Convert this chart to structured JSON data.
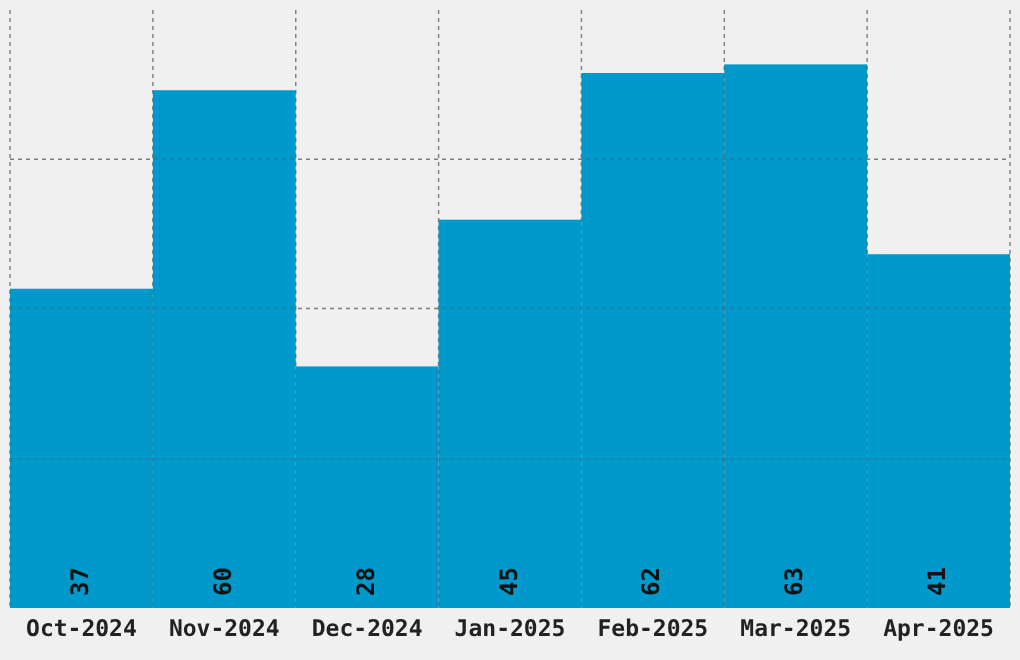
{
  "chart_data": {
    "type": "bar",
    "categories": [
      "Oct-2024",
      "Nov-2024",
      "Dec-2024",
      "Jan-2025",
      "Feb-2025",
      "Mar-2025",
      "Apr-2025"
    ],
    "values": [
      37,
      60,
      28,
      45,
      62,
      63,
      41
    ],
    "color": "#0099cc",
    "data_labels": true,
    "grid": true,
    "tick_labels": "x",
    "ylim": [
      0,
      69.3
    ],
    "yticks": [
      {
        "value": 17.3,
        "label": null
      },
      {
        "value": 34.7,
        "label": null
      },
      {
        "value": 52,
        "label": null
      }
    ]
  }
}
